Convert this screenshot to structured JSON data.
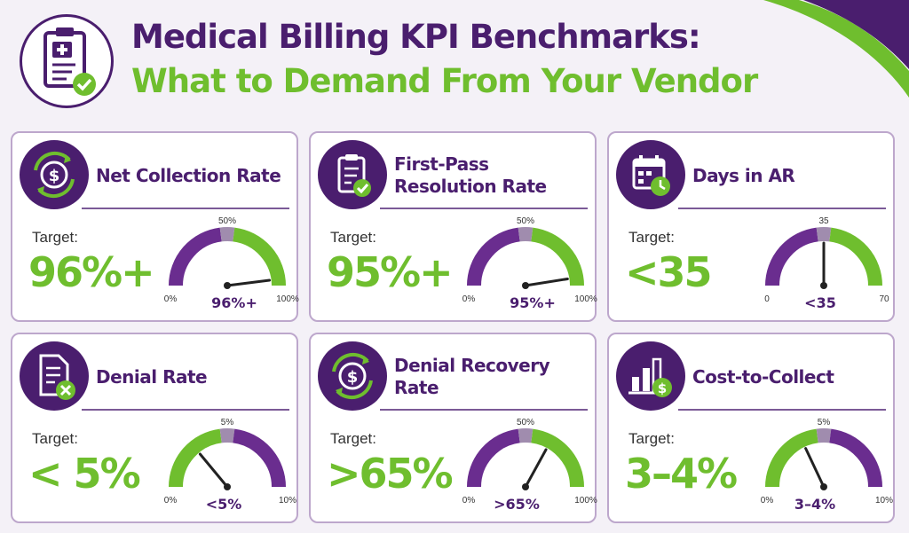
{
  "header": {
    "icon": "clipboard-check-icon",
    "title_line1": "Medical Billing KPI Benchmarks:",
    "title_line2": "What to Demand From Your Vendor"
  },
  "colors": {
    "purple": "#4a1e6e",
    "green": "#6fbe2e",
    "gauge_purple": "#6a2d8f",
    "gauge_gray": "#a08cae"
  },
  "cards": [
    {
      "title": "Net Collection Rate",
      "icon": "dollar-refresh-icon",
      "target_label": "Target:",
      "target_value": "96%+",
      "gauge": {
        "min_label": "0%",
        "mid_label": "50%",
        "max_label": "100%",
        "value_label": "96%+",
        "green_side": "right",
        "needle": 0.96
      }
    },
    {
      "title": "First-Pass Resolution Rate",
      "icon": "clipboard-check-icon",
      "target_label": "Target:",
      "target_value": "95%+",
      "gauge": {
        "min_label": "0%",
        "mid_label": "50%",
        "max_label": "100%",
        "value_label": "95%+",
        "green_side": "right",
        "needle": 0.95
      }
    },
    {
      "title": "Days in AR",
      "icon": "calendar-clock-icon",
      "target_label": "Target:",
      "target_value": "<35",
      "gauge": {
        "min_label": "0",
        "mid_label": "35",
        "max_label": "70",
        "value_label": "<35",
        "green_side": "right",
        "needle": 0.5
      }
    },
    {
      "title": "Denial Rate",
      "icon": "document-x-icon",
      "target_label": "Target:",
      "target_value": "< 5%",
      "gauge": {
        "min_label": "0%",
        "mid_label": "5%",
        "max_label": "10%",
        "value_label": "<5%",
        "green_side": "left",
        "needle": 0.28
      }
    },
    {
      "title": "Denial Recovery Rate",
      "icon": "dollar-refresh-icon",
      "target_label": "Target:",
      "target_value": ">65%",
      "gauge": {
        "min_label": "0%",
        "mid_label": "50%",
        "max_label": "100%",
        "value_label": ">65%",
        "green_side": "right",
        "needle": 0.66
      }
    },
    {
      "title": "Cost-to-Collect",
      "icon": "bar-chart-dollar-icon",
      "target_label": "Target:",
      "target_value": "3–4%",
      "gauge": {
        "min_label": "0%",
        "mid_label": "5%",
        "max_label": "10%",
        "value_label": "3–4%",
        "green_side": "left",
        "needle": 0.36
      }
    }
  ]
}
